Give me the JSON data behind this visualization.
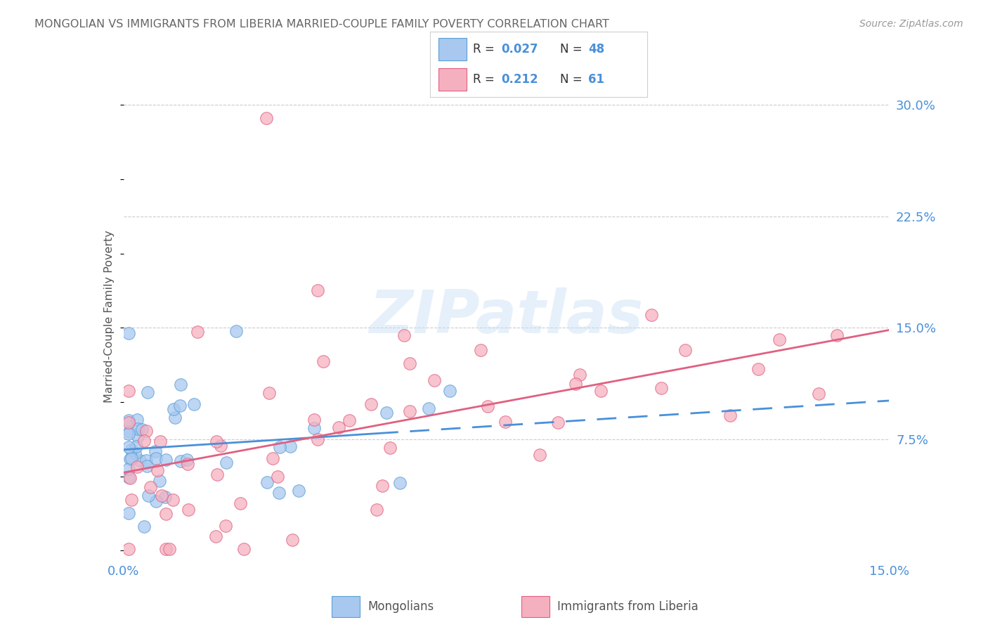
{
  "title": "MONGOLIAN VS IMMIGRANTS FROM LIBERIA MARRIED-COUPLE FAMILY POVERTY CORRELATION CHART",
  "source": "Source: ZipAtlas.com",
  "ylabel": "Married-Couple Family Poverty",
  "ytick_labels": [
    "7.5%",
    "15.0%",
    "22.5%",
    "30.0%"
  ],
  "ytick_values": [
    0.075,
    0.15,
    0.225,
    0.3
  ],
  "xlim": [
    0.0,
    0.15
  ],
  "ylim": [
    -0.005,
    0.32
  ],
  "blue_r": "0.027",
  "blue_n": "48",
  "pink_r": "0.212",
  "pink_n": "61",
  "blue_fill": "#a8c8f0",
  "pink_fill": "#f5b0c0",
  "blue_edge": "#5a9fd4",
  "pink_edge": "#e06080",
  "axis_color": "#4a90d9",
  "title_color": "#666666",
  "watermark": "ZIPatlas",
  "blue_trend_color": "#4a90d9",
  "pink_trend_color": "#e06080",
  "grid_color": "#cccccc",
  "legend_box_color": "#e8e8e8"
}
